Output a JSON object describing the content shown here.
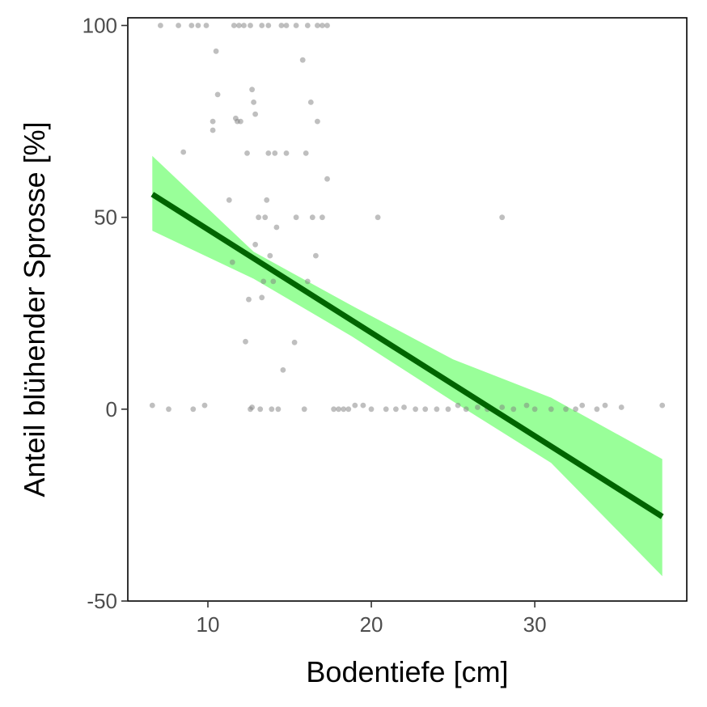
{
  "chart_data": {
    "type": "scatter",
    "xlabel": "Bodentiefe [cm]",
    "ylabel": "Anteil blühender Sprosse [%]",
    "xlim": [
      5.1,
      39.3
    ],
    "ylim": [
      -50,
      102
    ],
    "xticks": [
      10,
      20,
      30
    ],
    "yticks": [
      100,
      50,
      0,
      -50
    ],
    "grid": false,
    "colors": {
      "points": "#808080",
      "line": "#006400",
      "band": "#99ff99",
      "frame": "#000000"
    },
    "series": [
      {
        "kind": "points",
        "points": [
          [
            6.6,
            1
          ],
          [
            7.6,
            0
          ],
          [
            8.5,
            67
          ],
          [
            9.1,
            0
          ],
          [
            9.8,
            1
          ],
          [
            10.3,
            75
          ],
          [
            10.3,
            72.7
          ],
          [
            10.5,
            93.3
          ],
          [
            10.6,
            82
          ],
          [
            11.3,
            54.5
          ],
          [
            11.5,
            38.3
          ],
          [
            11.7,
            75.8
          ],
          [
            11.8,
            75
          ],
          [
            12.0,
            75
          ],
          [
            12.3,
            17.6
          ],
          [
            12.4,
            66.7
          ],
          [
            12.5,
            28.6
          ],
          [
            12.6,
            0
          ],
          [
            12.7,
            0.5
          ],
          [
            12.7,
            83.3
          ],
          [
            12.8,
            80
          ],
          [
            12.9,
            76.9
          ],
          [
            12.9,
            42.9
          ],
          [
            13.1,
            50
          ],
          [
            13.2,
            0
          ],
          [
            13.3,
            29.1
          ],
          [
            13.4,
            33.3
          ],
          [
            13.5,
            50
          ],
          [
            13.6,
            54.5
          ],
          [
            13.7,
            66.7
          ],
          [
            13.8,
            40
          ],
          [
            13.9,
            0
          ],
          [
            14.0,
            33.3
          ],
          [
            14.1,
            66.7
          ],
          [
            14.2,
            47.4
          ],
          [
            14.3,
            0
          ],
          [
            14.6,
            10.2
          ],
          [
            14.8,
            66.7
          ],
          [
            15.3,
            17.4
          ],
          [
            15.4,
            50
          ],
          [
            15.8,
            91
          ],
          [
            15.9,
            0
          ],
          [
            16.0,
            66.7
          ],
          [
            16.1,
            33.3
          ],
          [
            16.3,
            80
          ],
          [
            16.4,
            50
          ],
          [
            16.6,
            40
          ],
          [
            16.7,
            75
          ],
          [
            17.0,
            50
          ],
          [
            17.3,
            60
          ],
          [
            17.7,
            0
          ],
          [
            18.0,
            0
          ],
          [
            18.3,
            0
          ],
          [
            18.6,
            0
          ],
          [
            19.0,
            1
          ],
          [
            19.5,
            1
          ],
          [
            20.0,
            0
          ],
          [
            20.4,
            50
          ],
          [
            20.9,
            0
          ],
          [
            21.5,
            0
          ],
          [
            22.0,
            0.5
          ],
          [
            22.7,
            0
          ],
          [
            23.3,
            0
          ],
          [
            24.0,
            0
          ],
          [
            24.7,
            0
          ],
          [
            25.3,
            1
          ],
          [
            25.8,
            0
          ],
          [
            26.5,
            0.5
          ],
          [
            27.1,
            0
          ],
          [
            28.0,
            50
          ],
          [
            28.0,
            0.5
          ],
          [
            28.7,
            0
          ],
          [
            29.5,
            1
          ],
          [
            30.0,
            0
          ],
          [
            31.0,
            0
          ],
          [
            31.9,
            0
          ],
          [
            32.5,
            0
          ],
          [
            32.9,
            1
          ],
          [
            33.8,
            0
          ],
          [
            34.3,
            1
          ],
          [
            35.3,
            0.5
          ],
          [
            37.8,
            1
          ],
          [
            7.1,
            100
          ],
          [
            8.2,
            100
          ],
          [
            9.0,
            100
          ],
          [
            9.4,
            100
          ],
          [
            9.9,
            100
          ],
          [
            11.6,
            100
          ],
          [
            11.9,
            100
          ],
          [
            12.2,
            100
          ],
          [
            12.6,
            100
          ],
          [
            13.3,
            100
          ],
          [
            13.7,
            100
          ],
          [
            14.5,
            100
          ],
          [
            14.8,
            100
          ],
          [
            15.4,
            100
          ],
          [
            16.1,
            100
          ],
          [
            16.7,
            100
          ],
          [
            17.0,
            100
          ],
          [
            17.3,
            100
          ]
        ]
      },
      {
        "kind": "fit",
        "x": [
          6.6,
          37.8
        ],
        "y": [
          56,
          -28
        ]
      },
      {
        "kind": "confidence_band",
        "x": [
          6.6,
          12.8,
          18.8,
          25.0,
          31.0,
          37.8
        ],
        "upper": [
          66,
          41,
          27,
          13,
          3,
          -13
        ],
        "lower": [
          46.5,
          34,
          19,
          2,
          -14,
          -43.5
        ]
      }
    ]
  }
}
